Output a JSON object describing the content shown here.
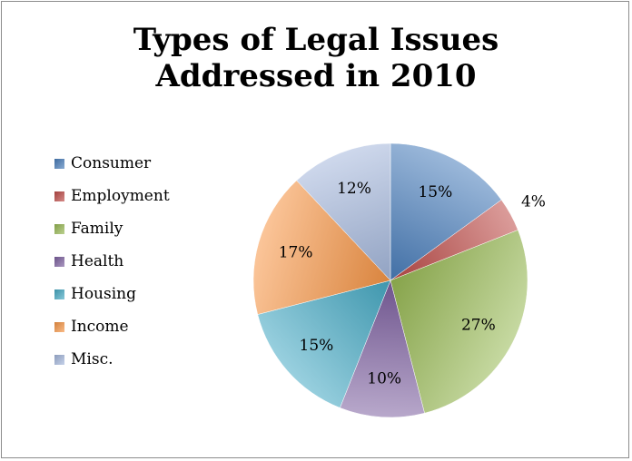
{
  "chart_data": {
    "type": "pie",
    "title_lines": [
      "Types of Legal Issues",
      "Addressed in 2010"
    ],
    "legend_position": "left",
    "slices": [
      {
        "name": "Consumer",
        "value": 15,
        "label": "15%",
        "color": "#4a7ebb"
      },
      {
        "name": "Employment",
        "value": 4,
        "label": "4%",
        "color": "#be4b48"
      },
      {
        "name": "Family",
        "value": 27,
        "label": "27%",
        "color": "#98b954"
      },
      {
        "name": "Health",
        "value": 10,
        "label": "10%",
        "color": "#7d60a0"
      },
      {
        "name": "Housing",
        "value": 15,
        "label": "15%",
        "color": "#46aac5"
      },
      {
        "name": "Income",
        "value": 17,
        "label": "17%",
        "color": "#f79646"
      },
      {
        "name": "Misc.",
        "value": 12,
        "label": "12%",
        "color": "#a5b8dd"
      }
    ]
  }
}
